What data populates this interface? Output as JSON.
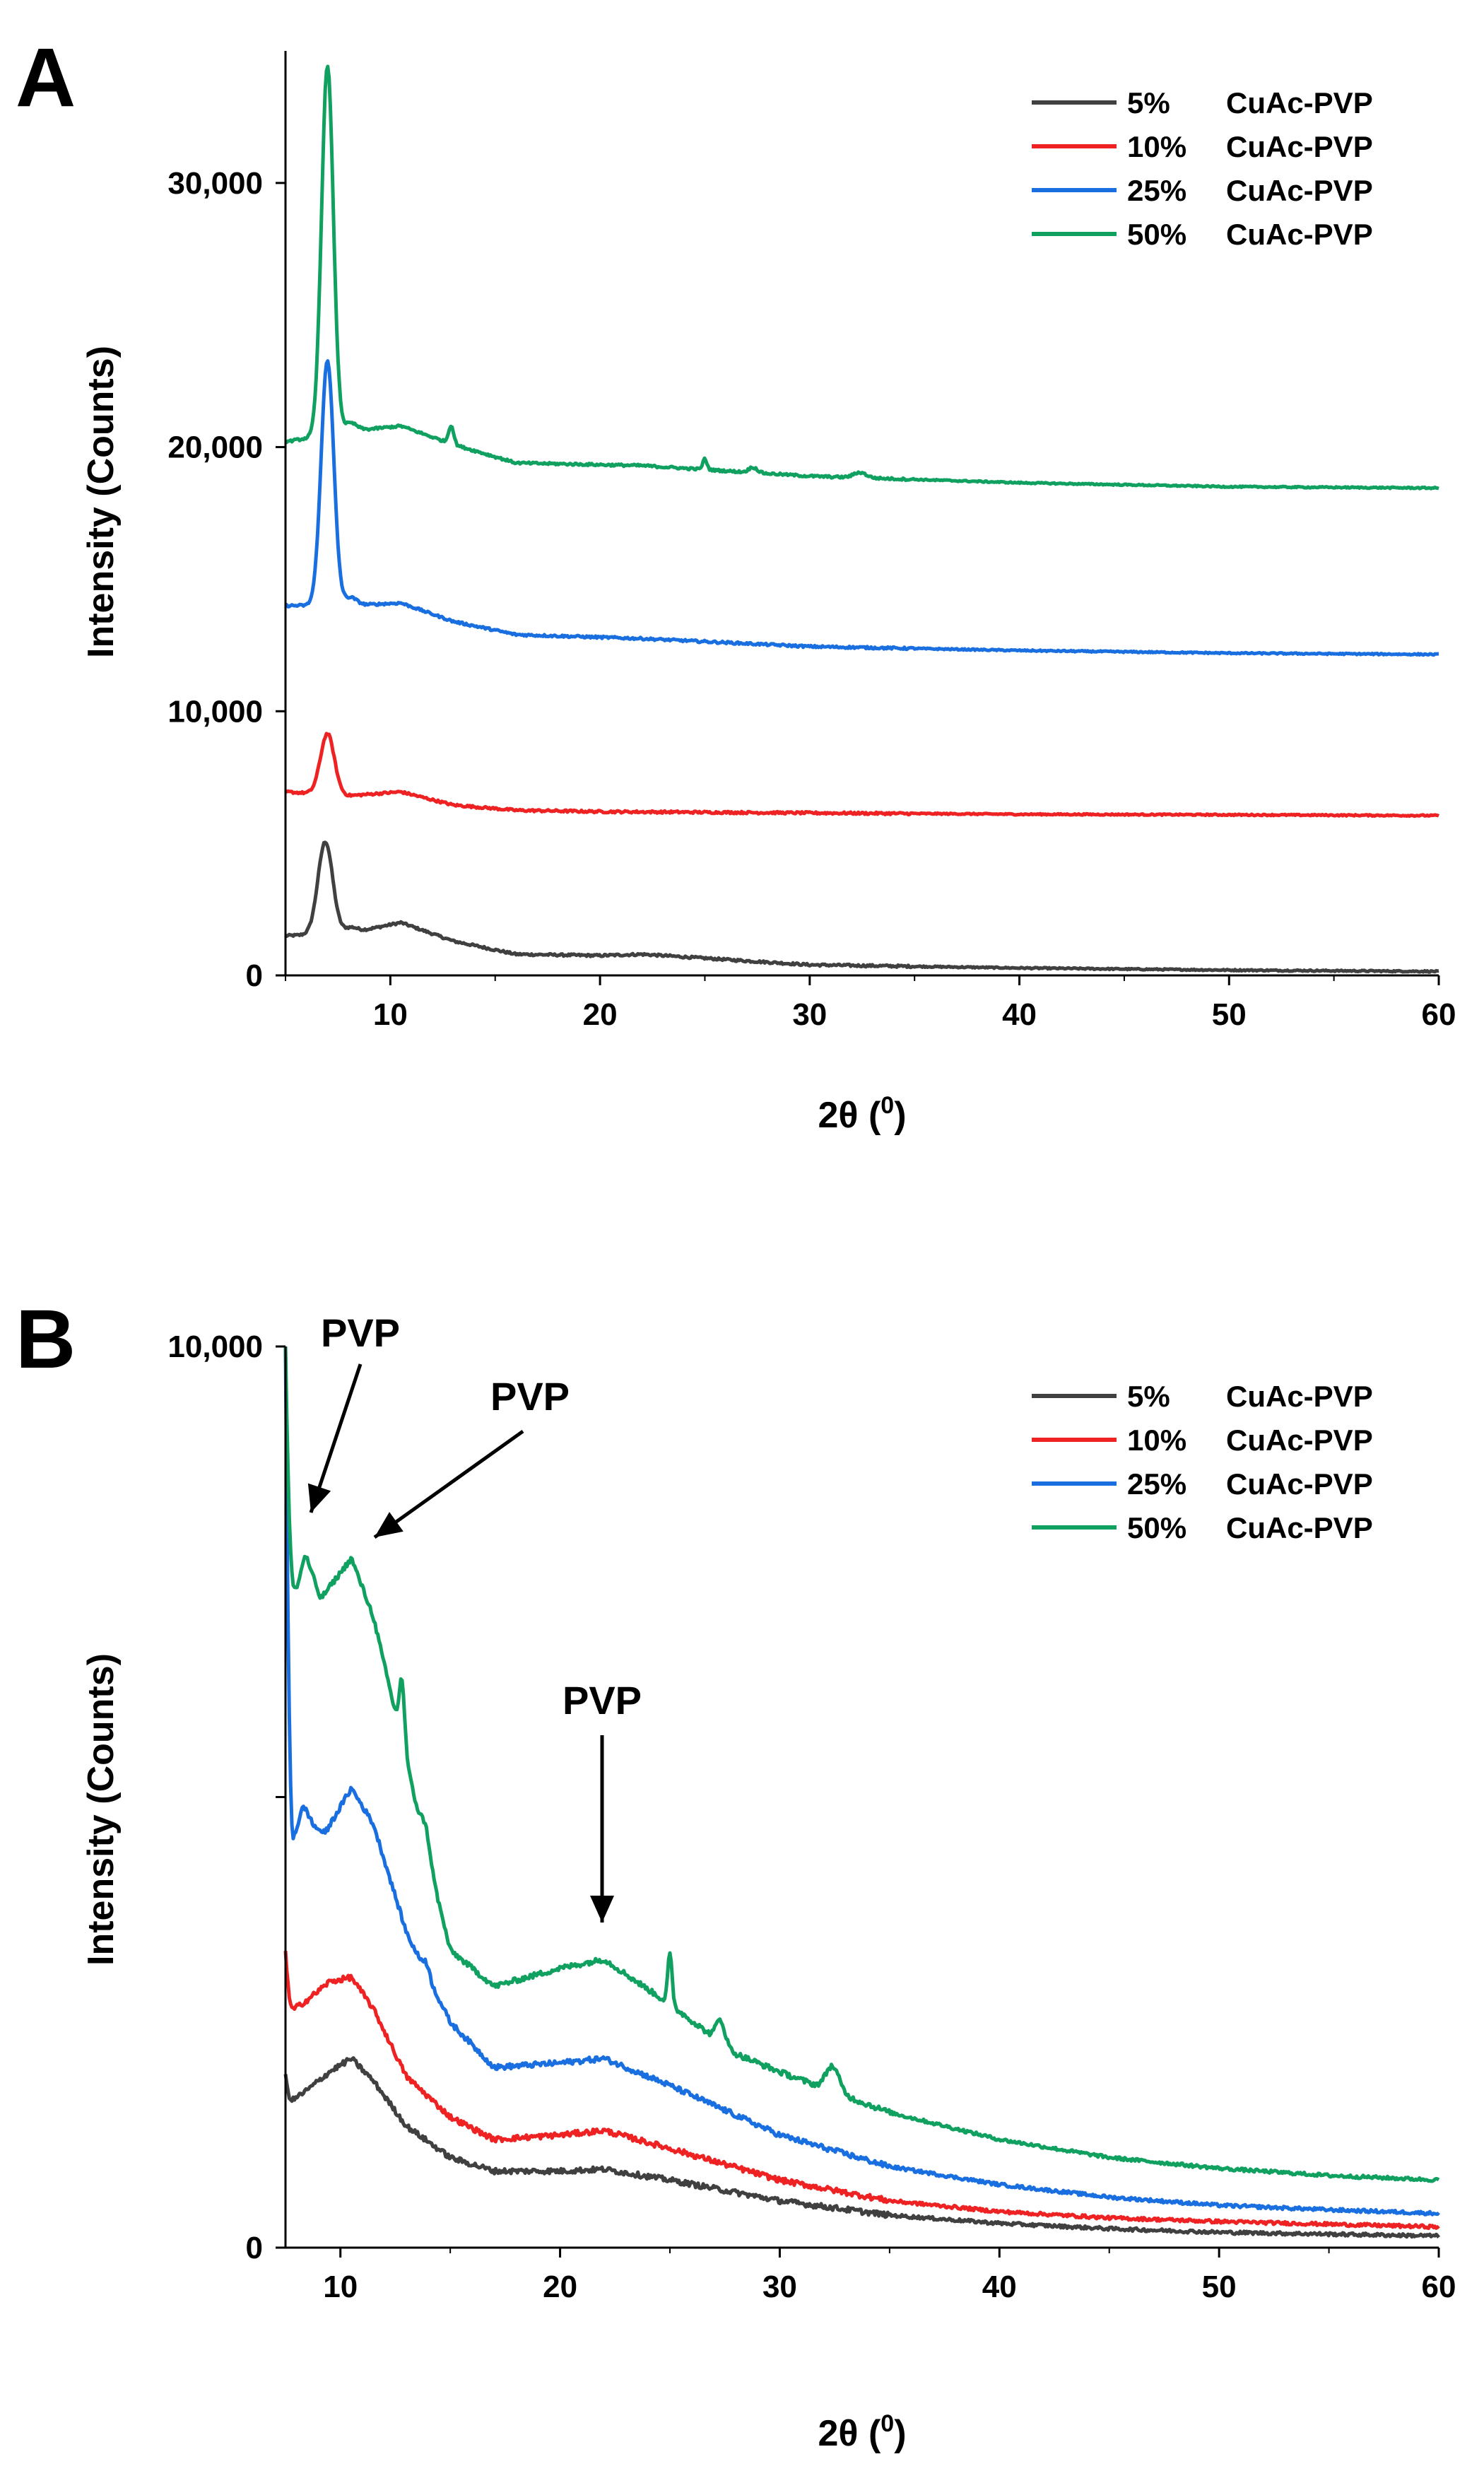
{
  "chart_data": [
    {
      "panel": "A",
      "type": "line",
      "xlabel": "2θ (0)",
      "xlabel_main": "2θ (",
      "xlabel_sup": "0",
      "xlabel_end": ")",
      "ylabel": "Intensity (Counts)",
      "xlim": [
        5,
        60
      ],
      "ylim": [
        0,
        35000
      ],
      "xticks": [
        10,
        20,
        30,
        40,
        50,
        60
      ],
      "xtick_labels": [
        "10",
        "20",
        "30",
        "40",
        "50",
        "60"
      ],
      "yticks": [
        0,
        10000,
        20000,
        30000
      ],
      "ytick_labels": [
        "0",
        "10,000",
        "20,000",
        "30,000"
      ],
      "legend_position": "top-right",
      "series": [
        {
          "name": "5%",
          "label_pct": "5%",
          "label_name": "CuAc-PVP",
          "color": "#404040",
          "baseline": 1500,
          "baseline_points": [
            [
              5,
              1500
            ],
            [
              8,
              1600
            ],
            [
              10.5,
              2000
            ],
            [
              13,
              1300
            ],
            [
              16,
              800
            ],
            [
              20,
              750
            ],
            [
              22,
              800
            ],
            [
              25,
              650
            ],
            [
              30,
              400
            ],
            [
              40,
              280
            ],
            [
              50,
              200
            ],
            [
              60,
              150
            ]
          ],
          "peaks": [
            [
              6.9,
              3500,
              0.35
            ],
            [
              8.1,
              200,
              0.3
            ]
          ]
        },
        {
          "name": "10%",
          "label_pct": "10%",
          "label_name": "CuAc-PVP",
          "color": "#ee2222",
          "baseline": 7000,
          "baseline_points": [
            [
              5,
              6950
            ],
            [
              8,
              6800
            ],
            [
              10.5,
              6950
            ],
            [
              13,
              6450
            ],
            [
              16,
              6250
            ],
            [
              20,
              6200
            ],
            [
              30,
              6150
            ],
            [
              40,
              6100
            ],
            [
              50,
              6080
            ],
            [
              60,
              6050
            ]
          ],
          "peaks": [
            [
              7.0,
              2300,
              0.33
            ]
          ]
        },
        {
          "name": "25%",
          "label_pct": "25%",
          "label_name": "CuAc-PVP",
          "color": "#1a6fe0",
          "baseline": 14000,
          "baseline_points": [
            [
              5,
              14000
            ],
            [
              8,
              14000
            ],
            [
              10.5,
              14100
            ],
            [
              13,
              13400
            ],
            [
              16,
              12900
            ],
            [
              22,
              12750
            ],
            [
              30,
              12450
            ],
            [
              40,
              12300
            ],
            [
              50,
              12200
            ],
            [
              60,
              12150
            ]
          ],
          "peaks": [
            [
              7.0,
              9300,
              0.3
            ],
            [
              8.1,
              300,
              0.3
            ]
          ]
        },
        {
          "name": "50%",
          "label_pct": "50%",
          "label_name": "CuAc-PVP",
          "color": "#10a060",
          "baseline": 20000,
          "baseline_points": [
            [
              5,
              20200
            ],
            [
              8,
              20600
            ],
            [
              10.5,
              20800
            ],
            [
              13,
              20100
            ],
            [
              16,
              19400
            ],
            [
              22,
              19300
            ],
            [
              30,
              18900
            ],
            [
              40,
              18650
            ],
            [
              50,
              18500
            ],
            [
              60,
              18450
            ]
          ],
          "peaks": [
            [
              7.0,
              14000,
              0.28
            ],
            [
              8.1,
              300,
              0.3
            ],
            [
              12.9,
              700,
              0.12
            ],
            [
              25.0,
              400,
              0.1
            ],
            [
              27.3,
              200,
              0.2
            ],
            [
              32.4,
              200,
              0.3
            ]
          ]
        }
      ]
    },
    {
      "panel": "B",
      "type": "line",
      "xlabel": "2θ (0)",
      "xlabel_main": "2θ (",
      "xlabel_sup": "0",
      "xlabel_end": ")",
      "ylabel": "Intensity (Counts)",
      "xlim": [
        7.5,
        60
      ],
      "ylim": [
        0,
        10000
      ],
      "xticks": [
        10,
        20,
        30,
        40,
        50,
        60
      ],
      "xtick_labels": [
        "10",
        "20",
        "30",
        "40",
        "50",
        "60"
      ],
      "yticks": [
        0,
        5000,
        10000
      ],
      "ytick_labels": [
        "0",
        "",
        "10,000"
      ],
      "legend_position": "top-right",
      "annotations": [
        {
          "text": "PVP",
          "x": 8.3,
          "y": 7300
        },
        {
          "text": "PVP",
          "x": 10.5,
          "y": 7300
        },
        {
          "text": "PVP",
          "x": 21.8,
          "y": 3100
        }
      ],
      "series": [
        {
          "name": "5%",
          "label_pct": "5%",
          "label_name": "CuAc-PVP",
          "color": "#404040",
          "baseline_points": [
            [
              7.6,
              1600
            ],
            [
              8.5,
              1750
            ],
            [
              9.5,
              1950
            ],
            [
              10.5,
              2100
            ],
            [
              11.5,
              1850
            ],
            [
              13,
              1350
            ],
            [
              15,
              1000
            ],
            [
              17,
              850
            ],
            [
              20,
              850
            ],
            [
              22,
              870
            ],
            [
              25,
              750
            ],
            [
              30,
              520
            ],
            [
              35,
              360
            ],
            [
              40,
              270
            ],
            [
              45,
              210
            ],
            [
              50,
              170
            ],
            [
              55,
              150
            ],
            [
              60,
              130
            ]
          ],
          "start_spike": 1900,
          "peaks": []
        },
        {
          "name": "10%",
          "label_pct": "10%",
          "label_name": "CuAc-PVP",
          "color": "#ee2222",
          "baseline_points": [
            [
              7.6,
              2600
            ],
            [
              8.5,
              2750
            ],
            [
              9.5,
              2950
            ],
            [
              10.5,
              3000
            ],
            [
              11.5,
              2650
            ],
            [
              13,
              1900
            ],
            [
              15,
              1450
            ],
            [
              17,
              1200
            ],
            [
              20,
              1250
            ],
            [
              22,
              1300
            ],
            [
              25,
              1100
            ],
            [
              30,
              750
            ],
            [
              35,
              520
            ],
            [
              40,
              400
            ],
            [
              45,
              330
            ],
            [
              50,
              290
            ],
            [
              55,
              260
            ],
            [
              60,
              230
            ]
          ],
          "start_spike": 3300,
          "peaks": []
        },
        {
          "name": "25%",
          "label_pct": "25%",
          "label_name": "CuAc-PVP",
          "color": "#1a6fe0",
          "baseline_points": [
            [
              7.6,
              4500
            ],
            [
              8.2,
              4600
            ],
            [
              8.6,
              4700
            ],
            [
              9.3,
              4600
            ],
            [
              10.5,
              5100
            ],
            [
              11.5,
              4700
            ],
            [
              13,
              3500
            ],
            [
              15,
              2500
            ],
            [
              17,
              2000
            ],
            [
              20,
              2050
            ],
            [
              22,
              2100
            ],
            [
              25,
              1800
            ],
            [
              30,
              1250
            ],
            [
              35,
              900
            ],
            [
              40,
              700
            ],
            [
              45,
              560
            ],
            [
              50,
              470
            ],
            [
              55,
              420
            ],
            [
              60,
              380
            ]
          ],
          "start_spike": 10000,
          "peaks": [
            [
              8.3,
              250,
              0.2
            ],
            [
              13.9,
              120,
              0.15
            ]
          ]
        },
        {
          "name": "50%",
          "label_pct": "50%",
          "label_name": "CuAc-PVP",
          "color": "#10a060",
          "baseline_points": [
            [
              7.6,
              7500
            ],
            [
              8.0,
              7300
            ],
            [
              8.4,
              7700
            ],
            [
              9.1,
              7200
            ],
            [
              10.5,
              7650
            ],
            [
              11.5,
              7000
            ],
            [
              13,
              5400
            ],
            [
              14,
              4300
            ],
            [
              15,
              3300
            ],
            [
              17,
              2900
            ],
            [
              20,
              3100
            ],
            [
              22,
              3200
            ],
            [
              25,
              2700
            ],
            [
              28,
              2150
            ],
            [
              30,
              1950
            ],
            [
              35,
              1500
            ],
            [
              40,
              1200
            ],
            [
              45,
              1000
            ],
            [
              50,
              880
            ],
            [
              55,
              800
            ],
            [
              60,
              750
            ]
          ],
          "start_spike": 10000,
          "peaks": [
            [
              12.8,
              700,
              0.12
            ],
            [
              13.9,
              250,
              0.2
            ],
            [
              25.0,
              550,
              0.1
            ],
            [
              27.3,
              250,
              0.2
            ],
            [
              32.4,
              280,
              0.3
            ]
          ]
        }
      ]
    }
  ]
}
